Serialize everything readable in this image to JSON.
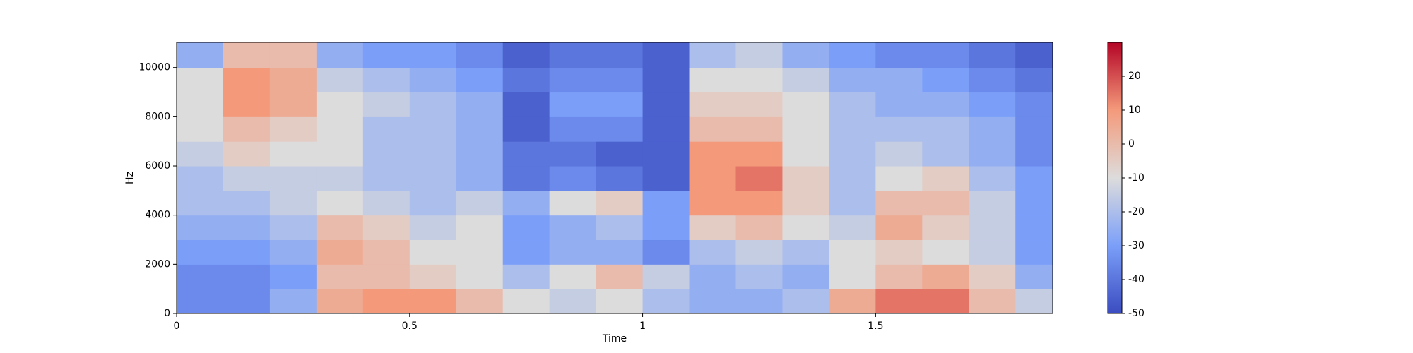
{
  "chart_data": {
    "type": "spectrogram",
    "xlabel": "Time",
    "ylabel": "Hz",
    "x": [
      0,
      0.1,
      0.2,
      0.3,
      0.4,
      0.5,
      0.6,
      0.7,
      0.8,
      0.9,
      1.0,
      1.1,
      1.2,
      1.3,
      1.4,
      1.5,
      1.6,
      1.7,
      1.8
    ],
    "y": [
      0,
      1000,
      2000,
      3000,
      4000,
      5000,
      6000,
      7000,
      8000,
      9000,
      10000
    ],
    "values": [
      [
        -35,
        -35,
        -25,
        5,
        10,
        10,
        0,
        -10,
        -15,
        -10,
        -20,
        -25,
        -25,
        -20,
        5,
        15,
        15,
        0,
        -15
      ],
      [
        -35,
        -35,
        -30,
        0,
        0,
        -5,
        -10,
        -20,
        -10,
        0,
        -15,
        -25,
        -20,
        -25,
        -10,
        0,
        5,
        -5,
        -25
      ],
      [
        -30,
        -30,
        -25,
        5,
        0,
        -10,
        -10,
        -30,
        -25,
        -25,
        -35,
        -20,
        -15,
        -20,
        -10,
        -5,
        -10,
        -15,
        -30
      ],
      [
        -25,
        -25,
        -20,
        0,
        -5,
        -15,
        -10,
        -30,
        -25,
        -20,
        -30,
        -5,
        0,
        -10,
        -15,
        5,
        -5,
        -15,
        -30
      ],
      [
        -20,
        -20,
        -15,
        -10,
        -15,
        -20,
        -15,
        -25,
        -10,
        -5,
        -30,
        10,
        10,
        -5,
        -20,
        0,
        0,
        -15,
        -30
      ],
      [
        -20,
        -15,
        -15,
        -15,
        -20,
        -20,
        -25,
        -40,
        -35,
        -40,
        -45,
        10,
        15,
        -5,
        -20,
        -10,
        -5,
        -20,
        -30
      ],
      [
        -15,
        -5,
        -10,
        -10,
        -20,
        -20,
        -25,
        -40,
        -40,
        -45,
        -45,
        10,
        10,
        -10,
        -20,
        -15,
        -20,
        -25,
        -35
      ],
      [
        -10,
        0,
        -5,
        -10,
        -20,
        -20,
        -25,
        -45,
        -35,
        -35,
        -45,
        0,
        0,
        -10,
        -20,
        -20,
        -20,
        -25,
        -35
      ],
      [
        -10,
        10,
        5,
        -10,
        -15,
        -20,
        -25,
        -45,
        -30,
        -30,
        -45,
        -5,
        -5,
        -10,
        -20,
        -25,
        -25,
        -30,
        -35
      ],
      [
        -10,
        10,
        5,
        -15,
        -20,
        -25,
        -30,
        -40,
        -35,
        -35,
        -45,
        -10,
        -10,
        -15,
        -25,
        -25,
        -30,
        -35,
        -40
      ],
      [
        -25,
        0,
        0,
        -25,
        -30,
        -30,
        -35,
        -45,
        -40,
        -40,
        -45,
        -20,
        -15,
        -25,
        -30,
        -35,
        -35,
        -40,
        -45
      ]
    ],
    "xlim": [
      0,
      1.88
    ],
    "ylim": [
      0,
      11025
    ],
    "xticks": [
      0,
      0.5,
      1,
      1.5
    ],
    "yticks": [
      0,
      2000,
      4000,
      6000,
      8000,
      10000
    ],
    "colormap": "coolwarm",
    "clim": [
      -50,
      30
    ],
    "cticks": [
      -50,
      -40,
      -30,
      -20,
      -10,
      0,
      10,
      20
    ]
  }
}
